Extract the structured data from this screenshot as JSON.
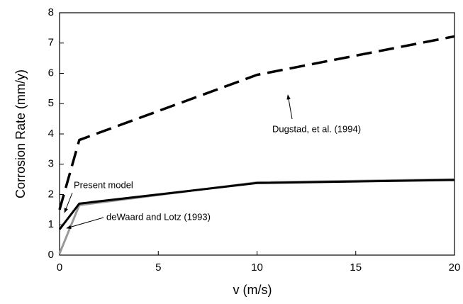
{
  "chart_data": {
    "type": "line",
    "x_label": "v (m/s)",
    "y_label": "Corrosion Rate (mm/y)",
    "xlim": [
      0,
      20
    ],
    "ylim": [
      0,
      8
    ],
    "xticks": [
      0,
      5,
      10,
      15,
      20
    ],
    "yticks": [
      0,
      1,
      2,
      3,
      4,
      5,
      6,
      7,
      8
    ],
    "series": [
      {
        "name": "Dugstad, et al. (1994)",
        "color": "#000000",
        "dash": "dashed",
        "x": [
          0,
          1,
          10,
          20
        ],
        "values": [
          1.5,
          3.8,
          5.95,
          7.22
        ]
      },
      {
        "name": "deWaard and Lotz (1993)",
        "color": "#999999",
        "dash": "solid",
        "x": [
          0,
          1,
          10,
          20
        ],
        "values": [
          0.05,
          1.65,
          2.4,
          2.5
        ]
      },
      {
        "name": "Present model",
        "color": "#000000",
        "dash": "solid",
        "x": [
          0,
          1,
          10,
          20
        ],
        "values": [
          0.85,
          1.7,
          2.38,
          2.48
        ]
      }
    ]
  }
}
